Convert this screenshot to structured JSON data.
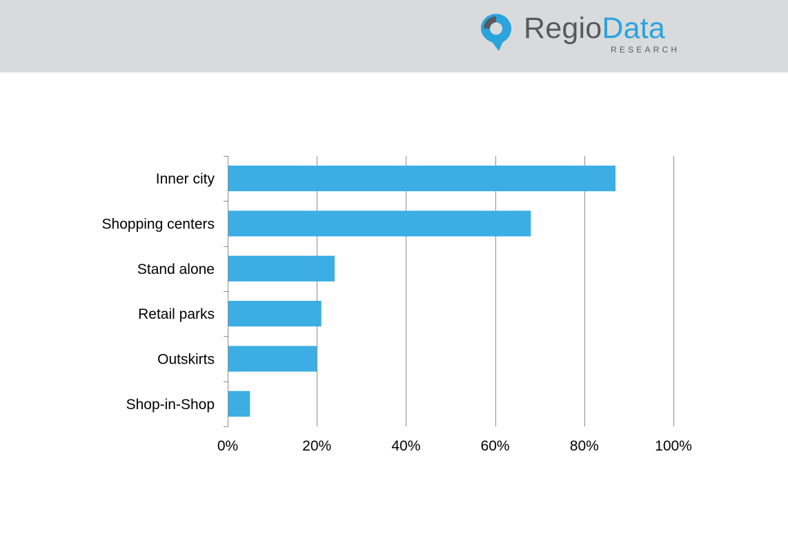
{
  "brand": {
    "name_part1": "Regio",
    "name_part2": "Data",
    "tagline": "RESEARCH",
    "colors": {
      "gray": "#58595b",
      "blue": "#29a4dd"
    },
    "icon": "map-pin-icon"
  },
  "colors": {
    "header_background": "#d9dadb",
    "bar": "#3daee3",
    "gridline": "#8c8c8c"
  },
  "chart_data": {
    "type": "bar",
    "orientation": "horizontal",
    "title": "",
    "xlabel": "",
    "ylabel": "",
    "categories": [
      "Inner city",
      "Shopping centers",
      "Stand alone",
      "Retail parks",
      "Outskirts",
      "Shop-in-Shop"
    ],
    "values": [
      87,
      68,
      24,
      21,
      20,
      5
    ],
    "unit": "%",
    "xlim": [
      0,
      100
    ],
    "x_ticks": [
      0,
      20,
      40,
      60,
      80,
      100
    ],
    "x_tick_labels": [
      "0%",
      "20%",
      "40%",
      "60%",
      "80%",
      "100%"
    ],
    "grid": "vertical",
    "legend": "none"
  }
}
